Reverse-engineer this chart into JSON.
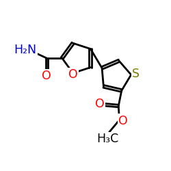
{
  "bg": "#ffffff",
  "bc": "#000000",
  "lw": 2.0,
  "dbo": 0.075,
  "colors": {
    "O": "#ff0000",
    "N": "#0000cd",
    "S": "#7b7b00",
    "C": "#000000"
  },
  "fs": 12.5,
  "xlim": [
    0,
    10
  ],
  "ylim": [
    0,
    10
  ]
}
